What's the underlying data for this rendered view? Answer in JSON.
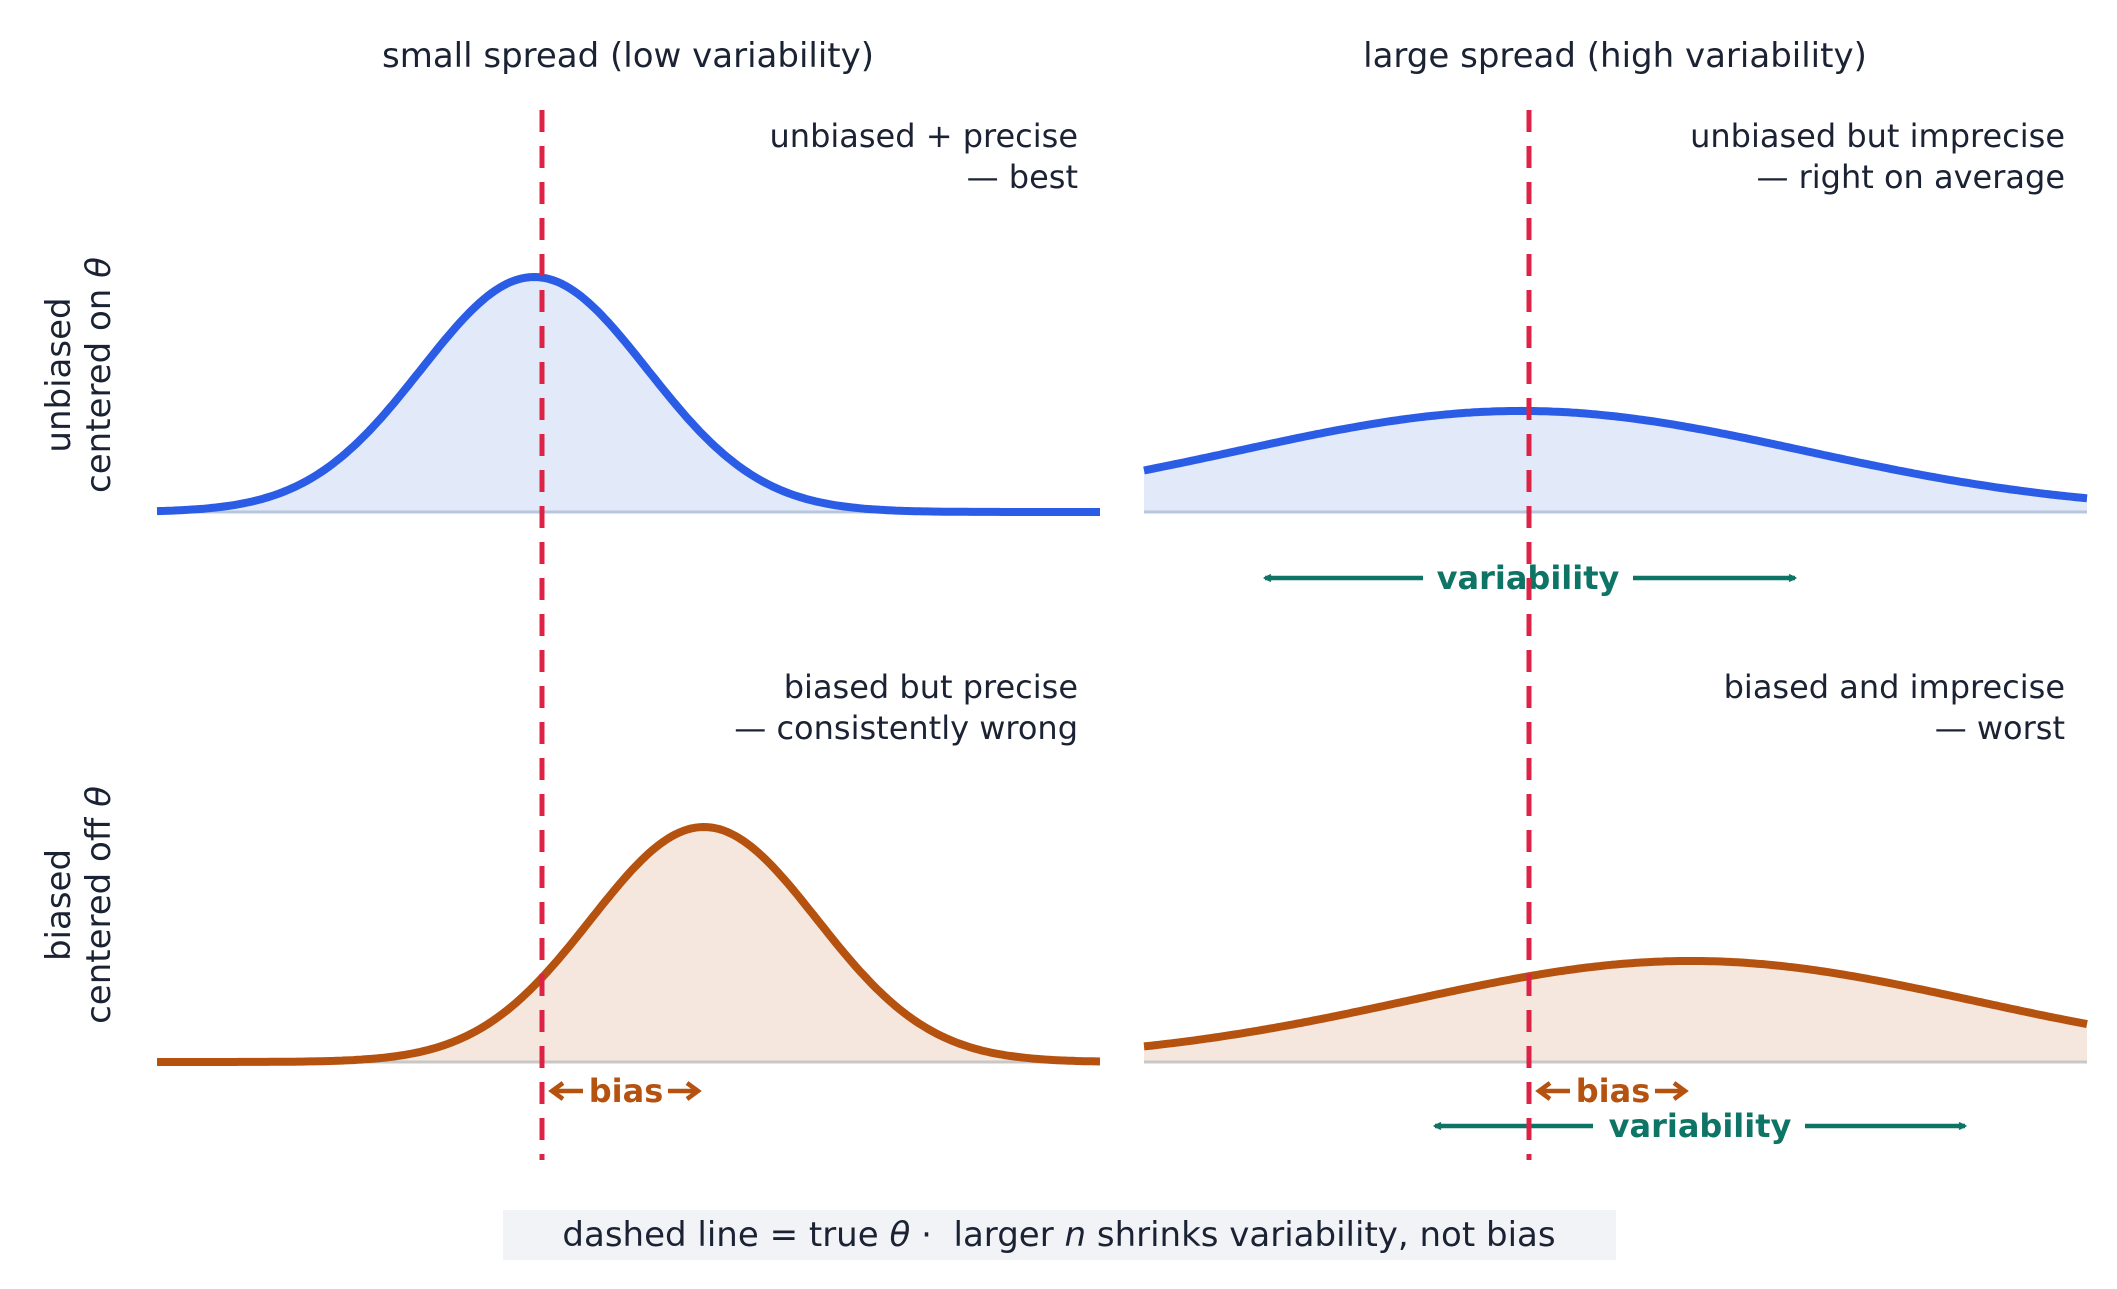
{
  "columns": [
    {
      "title": "small spread (low variability)"
    },
    {
      "title": "large spread (high variability)"
    }
  ],
  "rows": [
    {
      "label_line1": "unbiased",
      "label_line2_prefix": "centered on ",
      "label_symbol": "θ"
    },
    {
      "label_line1": "biased",
      "label_line2_prefix": "centered off ",
      "label_symbol": "θ"
    }
  ],
  "panels": [
    {
      "id": "unbiased-precise",
      "row": 0,
      "col": 0,
      "note_line1": "unbiased + precise",
      "note_line2": "— best",
      "curve_color": "#2b5ce6",
      "fill_color": "#e2e9f9",
      "baseline_color": "#b8c6e0",
      "center": 0,
      "spread": 0.6,
      "peak": 1.0,
      "bias_label": "",
      "variability_label": ""
    },
    {
      "id": "unbiased-imprecise",
      "row": 0,
      "col": 1,
      "note_line1": "unbiased but imprecise",
      "note_line2": "— right on average",
      "curve_color": "#2b5ce6",
      "fill_color": "#e2e9f9",
      "baseline_color": "#b8c6e0",
      "center": 0,
      "spread": 1.5,
      "peak": 0.43,
      "bias_label": "",
      "variability_label": "variability"
    },
    {
      "id": "biased-precise",
      "row": 1,
      "col": 0,
      "note_line1": "biased but precise",
      "note_line2": "— consistently wrong",
      "curve_color": "#b5520f",
      "fill_color": "#f5e7dd",
      "baseline_color": "#c8c8c8",
      "center": 0.9,
      "spread": 0.6,
      "peak": 1.0,
      "bias_label": "bias",
      "variability_label": ""
    },
    {
      "id": "biased-imprecise",
      "row": 1,
      "col": 1,
      "note_line1": "biased and imprecise",
      "note_line2": "— worst",
      "curve_color": "#b5520f",
      "fill_color": "#f5e7dd",
      "baseline_color": "#c8c8c8",
      "center": 0.9,
      "spread": 1.5,
      "peak": 0.43,
      "bias_label": "bias",
      "variability_label": "variability"
    }
  ],
  "x_range": [
    -2,
    3
  ],
  "true_value": 0,
  "colors": {
    "true_line": "#dc2346",
    "bias": "#b5520f",
    "variability": "#0e7466",
    "text": "#1a2233",
    "caption_bg": "#f1f3f6"
  },
  "caption": {
    "part1": "dashed line = true ",
    "symbol1": "θ",
    "separator": " · ",
    "part2": " larger ",
    "symbol2": "n",
    "part3": " shrinks variability, not bias"
  }
}
